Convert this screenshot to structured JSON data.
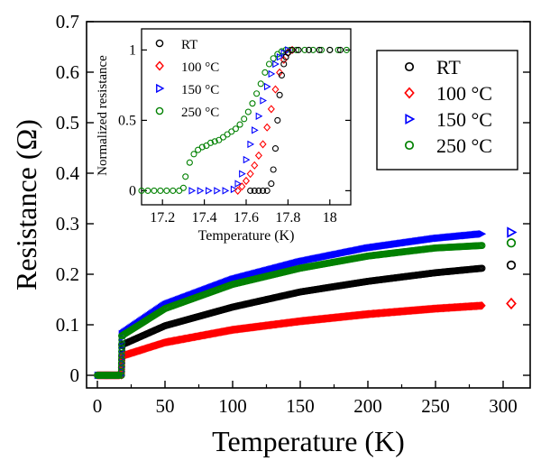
{
  "chart_data": [
    {
      "type": "scatter",
      "role": "main",
      "xlabel": "Temperature (K)",
      "ylabel": "Resistance (Ω)",
      "xlim": [
        -8,
        320
      ],
      "ylim": [
        -0.025,
        0.7
      ],
      "xticks": [
        "0",
        "50",
        "100",
        "150",
        "200",
        "250",
        "300"
      ],
      "yticks": [
        "0",
        "0.1",
        "0.2",
        "0.3",
        "0.4",
        "0.5",
        "0.6",
        "0.7"
      ],
      "marker": "open",
      "legend_position": "top-right",
      "series": [
        {
          "name": "RT",
          "color": "#000000",
          "marker": "circle",
          "tc": 17.8,
          "normal_state": {
            "x": [
              18,
              50,
              100,
              150,
              200,
              250,
              285
            ],
            "y": [
              0.06,
              0.098,
              0.135,
              0.165,
              0.186,
              0.203,
              0.212
            ]
          },
          "legend_marker_y": 0.218
        },
        {
          "name": "100 °C",
          "color": "#ff0000",
          "marker": "diamond",
          "tc": 17.75,
          "normal_state": {
            "x": [
              18,
              50,
              100,
              150,
              200,
              250,
              285
            ],
            "y": [
              0.038,
              0.065,
              0.09,
              0.107,
              0.121,
              0.132,
              0.138
            ]
          },
          "legend_marker_y": 0.142
        },
        {
          "name": "150 °C",
          "color": "#0000ff",
          "marker": "triangle-right",
          "tc": 17.7,
          "normal_state": {
            "x": [
              18,
              50,
              100,
              150,
              200,
              250,
              285
            ],
            "y": [
              0.082,
              0.14,
              0.19,
              0.225,
              0.252,
              0.271,
              0.28
            ]
          },
          "legend_marker_y": 0.283
        },
        {
          "name": "250 °C",
          "color": "#008000",
          "marker": "circle",
          "tc": 17.7,
          "normal_state": {
            "x": [
              18,
              50,
              100,
              150,
              200,
              250,
              285
            ],
            "y": [
              0.078,
              0.132,
              0.18,
              0.212,
              0.236,
              0.252,
              0.257
            ]
          },
          "legend_marker_y": 0.262
        }
      ]
    },
    {
      "type": "scatter",
      "role": "inset",
      "xlabel": "Temperature (K)",
      "ylabel": "Normalized resistance",
      "xlim": [
        17.1,
        18.1
      ],
      "ylim": [
        -0.1,
        1.15
      ],
      "xticks": [
        "17.2",
        "17.4",
        "17.6",
        "17.8",
        "18"
      ],
      "yticks": [
        "0",
        "0.5",
        "1"
      ],
      "legend_position": "top-left",
      "series": [
        {
          "name": "RT",
          "color": "#000000",
          "marker": "circle",
          "x": [
            17.62,
            17.64,
            17.66,
            17.68,
            17.7,
            17.72,
            17.73,
            17.74,
            17.75,
            17.76,
            17.77,
            17.78,
            17.79,
            17.8,
            17.82,
            17.85,
            17.9,
            17.95,
            18.0,
            18.05
          ],
          "y": [
            0,
            0,
            0,
            0,
            0,
            0.05,
            0.15,
            0.3,
            0.5,
            0.68,
            0.82,
            0.9,
            0.95,
            0.98,
            1,
            1,
            1,
            1,
            1,
            1
          ]
        },
        {
          "name": "100 °C",
          "color": "#ff0000",
          "marker": "diamond",
          "x": [
            17.56,
            17.58,
            17.6,
            17.62,
            17.64,
            17.66,
            17.68,
            17.7,
            17.72,
            17.74,
            17.76,
            17.78,
            17.8,
            17.82
          ],
          "y": [
            0,
            0.03,
            0.07,
            0.12,
            0.18,
            0.25,
            0.33,
            0.45,
            0.58,
            0.72,
            0.84,
            0.93,
            0.98,
            1
          ]
        },
        {
          "name": "150 °C",
          "color": "#0000ff",
          "marker": "triangle-right",
          "x": [
            17.34,
            17.38,
            17.42,
            17.46,
            17.5,
            17.54,
            17.56,
            17.58,
            17.6,
            17.62,
            17.64,
            17.66,
            17.68,
            17.7,
            17.72,
            17.74,
            17.76,
            17.78,
            17.8
          ],
          "y": [
            0,
            0,
            0,
            0,
            0,
            0.01,
            0.05,
            0.12,
            0.22,
            0.33,
            0.43,
            0.53,
            0.64,
            0.74,
            0.83,
            0.9,
            0.95,
            0.98,
            1
          ]
        },
        {
          "name": "250 °C",
          "color": "#008000",
          "marker": "circle",
          "x": [
            17.1,
            17.13,
            17.16,
            17.19,
            17.22,
            17.25,
            17.28,
            17.3,
            17.31,
            17.33,
            17.35,
            17.37,
            17.39,
            17.41,
            17.43,
            17.45,
            17.47,
            17.49,
            17.51,
            17.53,
            17.55,
            17.57,
            17.59,
            17.61,
            17.63,
            17.65,
            17.67,
            17.69,
            17.71,
            17.73,
            17.75,
            17.77,
            17.79,
            17.81,
            17.84,
            17.88,
            17.92,
            17.96,
            18.0,
            18.04,
            18.08
          ],
          "y": [
            0,
            0,
            0,
            0,
            0,
            0,
            0,
            0.02,
            0.1,
            0.2,
            0.26,
            0.29,
            0.31,
            0.32,
            0.34,
            0.35,
            0.36,
            0.38,
            0.4,
            0.42,
            0.44,
            0.47,
            0.51,
            0.56,
            0.62,
            0.69,
            0.76,
            0.84,
            0.9,
            0.94,
            0.97,
            0.99,
            1,
            1,
            1,
            1,
            1,
            1,
            1,
            1,
            1
          ]
        }
      ]
    }
  ]
}
